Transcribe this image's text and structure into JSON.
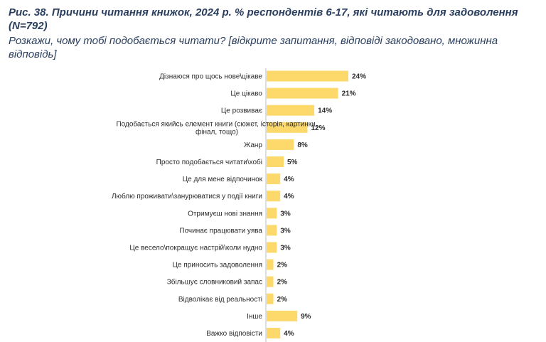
{
  "figure": {
    "title": "Рис. 38. Причини читання книжок, 2024 р. % респондентів 6-17, які читають для задоволення (N=792)",
    "subtitle": "Розкажи, чому тобі подобається читати? [відкрите запитання, відповіді закодовано, множинна відповідь]"
  },
  "chart_data": {
    "type": "bar",
    "orientation": "horizontal",
    "bar_color": "#fdd96b",
    "value_suffix": "%",
    "categories": [
      "Дізнаюся про щось нове\\цікаве",
      "Це цікаво",
      "Це розвиває",
      "Подобається якийсь елемент книги (сюжет, історія, картинки, фінал, тощо)",
      "Жанр",
      "Просто подобається читати\\хобі",
      "Це для мене відпочинок",
      "Люблю проживати\\занурюватися  у події книги",
      "Отримуєш нові знання",
      "Починає працювати уява",
      "Це весело\\покращує настрій\\коли нудно",
      "Це приносить задоволення",
      "Збільшує словниковий запас",
      "Відволікає від реальності",
      "Інше",
      "Важко відповісти"
    ],
    "values": [
      24,
      21,
      14,
      12,
      8,
      5,
      4,
      4,
      3,
      3,
      3,
      2,
      2,
      2,
      9,
      4
    ],
    "data_labels": [
      "24%",
      "21%",
      "14%",
      "12%",
      "8%",
      "5%",
      "4%",
      "4%",
      "3%",
      "3%",
      "3%",
      "2%",
      "2%",
      "2%",
      "9%",
      "4%"
    ],
    "xlim": [
      0,
      24
    ]
  }
}
